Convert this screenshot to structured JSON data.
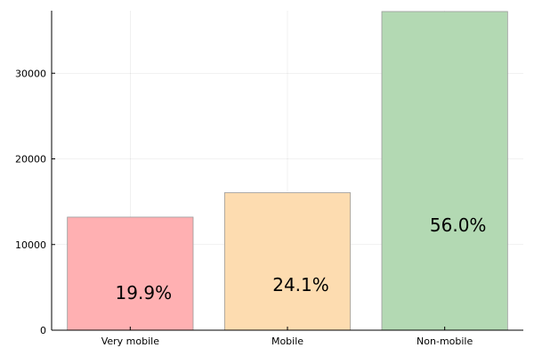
{
  "chart_data": {
    "type": "bar",
    "categories": [
      "Very mobile",
      "Mobile",
      "Non-mobile"
    ],
    "values": [
      13200,
      16050,
      37200
    ],
    "data_labels": [
      "19.9%",
      "24.1%",
      "56.0%"
    ],
    "colors": [
      "#ffb0b2",
      "#fddcb0",
      "#b3d9b3"
    ],
    "ylim": [
      0,
      37300
    ],
    "yticks": [
      0,
      10000,
      20000,
      30000
    ],
    "ytick_labels": [
      "0",
      "10000",
      "20000",
      "30000"
    ],
    "grid": true,
    "legend": "none",
    "title": "",
    "xlabel": "",
    "ylabel": ""
  }
}
